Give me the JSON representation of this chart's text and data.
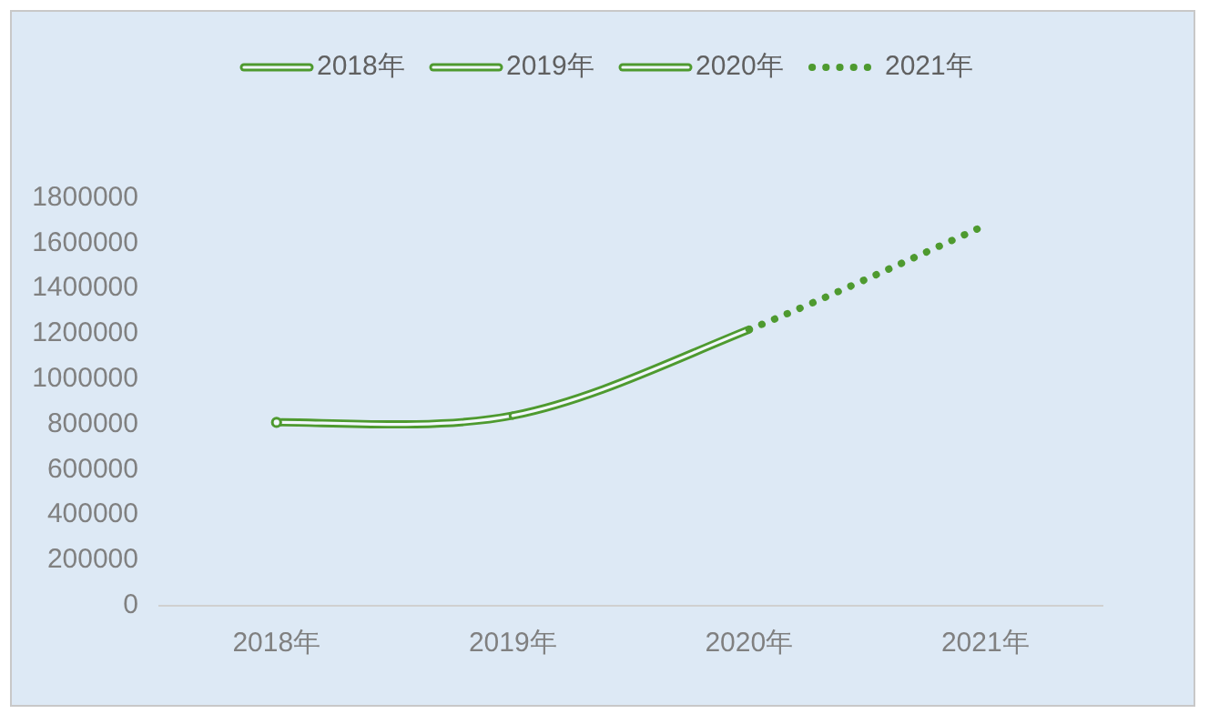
{
  "chart_data": {
    "type": "line",
    "categories": [
      "2018年",
      "2019年",
      "2020年",
      "2021年"
    ],
    "series": [
      {
        "name": "2018年",
        "color": "#4e9a2f",
        "line_style": "solid",
        "marker": "circle",
        "values": [
          810000,
          null,
          null,
          null
        ]
      },
      {
        "name": "2019年",
        "color": "#4e9a2f",
        "line_style": "solid",
        "values": [
          810000,
          840000,
          null,
          null
        ]
      },
      {
        "name": "2020年",
        "color": "#4e9a2f",
        "line_style": "solid",
        "values": [
          null,
          840000,
          1220000,
          null
        ]
      },
      {
        "name": "2021年",
        "color": "#4e9a2f",
        "line_style": "dotted",
        "values": [
          null,
          null,
          1220000,
          1680000
        ]
      }
    ],
    "ylim": [
      0,
      1800000
    ],
    "yticks": [
      0,
      200000,
      400000,
      600000,
      800000,
      1000000,
      1200000,
      1400000,
      1600000,
      1800000
    ],
    "grid": false,
    "legend": "top",
    "marker": "none"
  }
}
